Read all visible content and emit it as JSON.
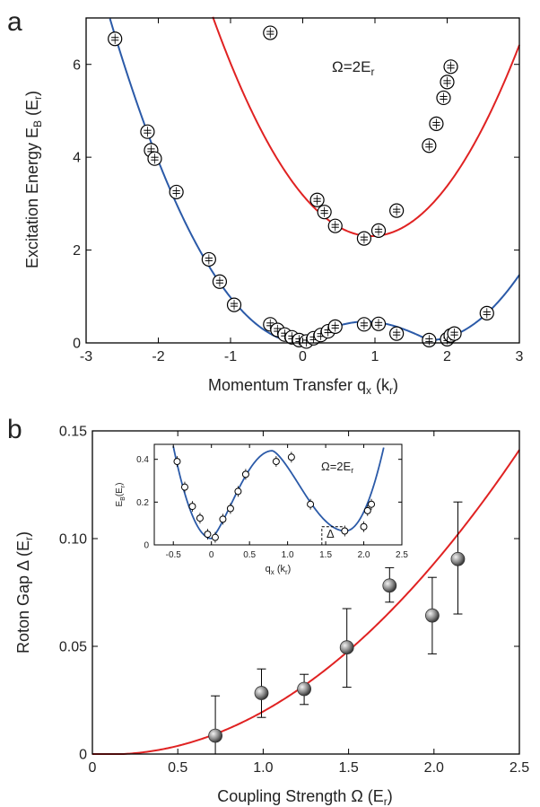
{
  "colors": {
    "blue": "#2b5aa8",
    "red": "#e02222",
    "axis": "#000000",
    "marker_fill": "#888888"
  },
  "chart_data": [
    {
      "panel_label": "a",
      "type": "scatter",
      "annotation": "Ω=2E",
      "annotation_sub": "r",
      "xlabel": "Momentum Transfer q",
      "xlabel_sub": "x",
      "xlabel_unit": "(k",
      "xlabel_unit_sub": "r",
      "xlabel_close": ")",
      "ylabel": "Excitation  Energy E",
      "ylabel_sub": "B",
      "ylabel_unit": "(E",
      "ylabel_unit_sub": "r",
      "ylabel_close": ")",
      "xlim": [
        -3,
        3
      ],
      "ylim": [
        0,
        7
      ],
      "xticks": [
        "-3",
        "-2",
        "-1",
        "0",
        "1",
        "2",
        "3"
      ],
      "yticks": [
        "0",
        "2",
        "4",
        "6"
      ],
      "series": [
        {
          "color": "#2b5aa8",
          "points": [
            [
              -2.6,
              6.55
            ],
            [
              -2.15,
              4.55
            ],
            [
              -2.1,
              4.15
            ],
            [
              -2.05,
              3.97
            ],
            [
              -1.75,
              3.25
            ],
            [
              -1.3,
              1.8
            ],
            [
              -1.15,
              1.32
            ],
            [
              -0.95,
              0.82
            ],
            [
              -0.45,
              0.4
            ],
            [
              -0.35,
              0.28
            ],
            [
              -0.25,
              0.18
            ],
            [
              -0.15,
              0.12
            ],
            [
              -0.05,
              0.06
            ],
            [
              0.05,
              0.03
            ],
            [
              0.15,
              0.1
            ],
            [
              0.25,
              0.17
            ],
            [
              0.35,
              0.25
            ],
            [
              0.45,
              0.35
            ],
            [
              0.85,
              0.4
            ],
            [
              1.05,
              0.41
            ],
            [
              1.3,
              0.2
            ],
            [
              1.75,
              0.06
            ],
            [
              2.0,
              0.08
            ],
            [
              2.05,
              0.16
            ],
            [
              2.1,
              0.2
            ],
            [
              2.55,
              0.64
            ]
          ]
        },
        {
          "color": "#e02222",
          "points": [
            [
              -0.45,
              6.68
            ],
            [
              0.2,
              3.08
            ],
            [
              0.3,
              2.82
            ],
            [
              0.45,
              2.52
            ],
            [
              0.85,
              2.25
            ],
            [
              1.05,
              2.42
            ],
            [
              1.3,
              2.85
            ],
            [
              1.75,
              4.25
            ],
            [
              1.85,
              4.72
            ],
            [
              1.95,
              5.28
            ],
            [
              2.0,
              5.62
            ],
            [
              2.05,
              5.95
            ]
          ]
        }
      ]
    },
    {
      "panel_label": "b",
      "type": "scatter",
      "xlabel": "Coupling Strength Ω (E",
      "xlabel_sub": "r",
      "xlabel_close": ")",
      "ylabel": "Roton Gap Δ (E",
      "ylabel_sub": "r",
      "ylabel_close": ")",
      "xlim": [
        0,
        2.5
      ],
      "ylim": [
        0,
        0.15
      ],
      "xticks": [
        "0",
        "0.5",
        "1.0",
        "1.5",
        "2.0",
        "2.5"
      ],
      "yticks": [
        "0",
        "0.05",
        "0.10",
        "0.15"
      ],
      "fit_color": "#e02222",
      "points": [
        {
          "x": 0.72,
          "y": 0.0085,
          "err_low": 0.0,
          "err_high": 0.027
        },
        {
          "x": 0.99,
          "y": 0.0283,
          "err_low": 0.017,
          "err_high": 0.0395
        },
        {
          "x": 1.24,
          "y": 0.0302,
          "err_low": 0.023,
          "err_high": 0.037
        },
        {
          "x": 1.49,
          "y": 0.0495,
          "err_low": 0.031,
          "err_high": 0.0675
        },
        {
          "x": 1.74,
          "y": 0.0782,
          "err_low": 0.0705,
          "err_high": 0.0865
        },
        {
          "x": 1.99,
          "y": 0.0643,
          "err_low": 0.0465,
          "err_high": 0.082
        },
        {
          "x": 2.14,
          "y": 0.0905,
          "err_low": 0.065,
          "err_high": 0.117
        }
      ]
    },
    {
      "panel_label": "b-inset",
      "type": "scatter",
      "annotation": "Ω=2E",
      "annotation_sub": "r",
      "gap_label": "Δ",
      "xlabel": "q",
      "xlabel_sub": "x",
      "xlabel_unit": "(k",
      "xlabel_unit_sub": "r",
      "xlabel_close": ")",
      "ylabel": "E",
      "ylabel_sub": "B",
      "ylabel_unit": "(E",
      "ylabel_unit_sub": "r",
      "ylabel_close": ")",
      "xlim": [
        -0.75,
        2.5
      ],
      "ylim": [
        0,
        0.47
      ],
      "xticks": [
        "-0.5",
        "0",
        "0.5",
        "1.0",
        "1.5",
        "2.0",
        "2.5"
      ],
      "yticks": [
        "0",
        "0.2",
        "0.4"
      ],
      "points": [
        [
          -0.45,
          0.39
        ],
        [
          -0.35,
          0.27
        ],
        [
          -0.25,
          0.18
        ],
        [
          -0.15,
          0.125
        ],
        [
          -0.05,
          0.05
        ],
        [
          0.05,
          0.035
        ],
        [
          0.15,
          0.12
        ],
        [
          0.25,
          0.17
        ],
        [
          0.35,
          0.25
        ],
        [
          0.45,
          0.33
        ],
        [
          0.85,
          0.39
        ],
        [
          1.05,
          0.41
        ],
        [
          1.3,
          0.19
        ],
        [
          1.75,
          0.065
        ],
        [
          2.0,
          0.085
        ],
        [
          2.05,
          0.16
        ],
        [
          2.1,
          0.19
        ]
      ]
    }
  ]
}
